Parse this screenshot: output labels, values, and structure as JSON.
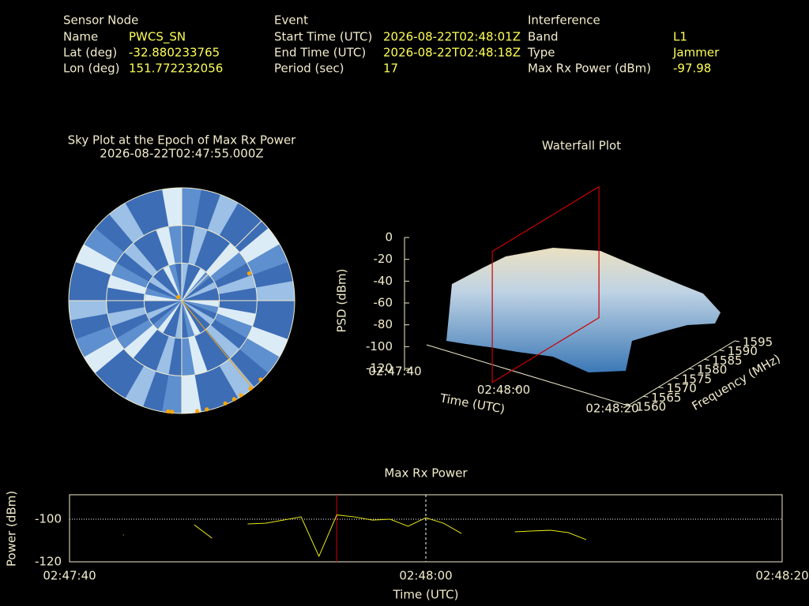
{
  "header": {
    "sensor": {
      "title": "Sensor Node",
      "rows": [
        {
          "label": "Name",
          "value": "PWCS_SN"
        },
        {
          "label": "Lat (deg)",
          "value": "-32.880233765"
        },
        {
          "label": "Lon (deg)",
          "value": "151.772232056"
        }
      ]
    },
    "event": {
      "title": "Event",
      "rows": [
        {
          "label": "Start Time (UTC)",
          "value": "2026-08-22T02:48:01Z"
        },
        {
          "label": "End Time (UTC)",
          "value": "2026-08-22T02:48:18Z"
        },
        {
          "label": "Period (sec)",
          "value": "17"
        }
      ]
    },
    "interference": {
      "title": "Interference",
      "rows": [
        {
          "label": "Band",
          "value": "L1"
        },
        {
          "label": "Type",
          "value": "Jammer"
        },
        {
          "label": "Max Rx Power (dBm)",
          "value": "-97.98"
        }
      ]
    }
  },
  "chart_data": [
    {
      "type": "polar-scatter",
      "title": "Sky Plot at the Epoch of Max Rx Power",
      "subtitle": "2026-08-22T02:47:55.000Z",
      "rlim": [
        90,
        0
      ],
      "rticks": [
        60,
        30,
        0
      ],
      "grid": true,
      "color": "#ffa500",
      "bearing": 141,
      "azimuth": [
        68,
        315,
        135,
        142,
        148,
        152,
        157,
        167,
        172,
        185,
        187
      ],
      "elevation": [
        32,
        86,
        1,
        1,
        1,
        1,
        1,
        1,
        1,
        1,
        1
      ]
    },
    {
      "type": "surface3d",
      "title": "Waterfall Plot",
      "xlabel": "Time (UTC)",
      "ylabel": "Frequency (MHz)",
      "zlabel": "PSD (dBm)",
      "xlim": [
        "02:47:40",
        "02:48:20"
      ],
      "xticks": [
        "02:47:40",
        "02:48:00",
        "02:48:20"
      ],
      "ylim": [
        1560,
        1595
      ],
      "yticks": [
        1560,
        1565,
        1570,
        1575,
        1580,
        1585,
        1590,
        1595
      ],
      "zlim": [
        -120,
        0
      ],
      "zticks": [
        -120,
        -100,
        -80,
        -60,
        -40,
        -20,
        0
      ],
      "marker_x": "02:47:55",
      "marker_color": "#cc0000"
    },
    {
      "type": "line",
      "title": "Max Rx Power",
      "xlabel": "Time (UTC)",
      "ylabel": "Power (dBm)",
      "xlim": [
        "02:47:40",
        "02:48:20"
      ],
      "xticks": [
        "02:47:40",
        "02:48:00",
        "02:48:20"
      ],
      "ylim": [
        -120,
        -88.5
      ],
      "yticks": [
        -120,
        -100
      ],
      "grid": true,
      "color": "#e6e619",
      "marker_x": "02:47:55",
      "marker_color": "#cc0000",
      "x": [
        "02:47:43",
        "02:47:44",
        "02:47:45",
        "02:47:46",
        "02:47:47",
        "02:47:48",
        "02:47:49",
        "02:47:50",
        "02:47:51",
        "02:47:52",
        "02:47:53",
        "02:47:54",
        "02:47:55",
        "02:47:56",
        "02:47:57",
        "02:47:58",
        "02:47:59",
        "02:48:00",
        "02:48:01",
        "02:48:02",
        "02:48:03",
        "02:48:04",
        "02:48:05",
        "02:48:06",
        "02:48:07",
        "02:48:08",
        "02:48:09"
      ],
      "values": [
        -107.4,
        null,
        null,
        null,
        -102.6,
        -108.9,
        null,
        -102.2,
        -101.9,
        -100.4,
        -98.9,
        -117.4,
        -97.98,
        -98.9,
        -100.4,
        -100,
        -103.3,
        -99.3,
        -101.9,
        -106.7,
        null,
        null,
        -105.9,
        -105.5,
        -105.2,
        -106.3,
        -109.6
      ]
    }
  ]
}
